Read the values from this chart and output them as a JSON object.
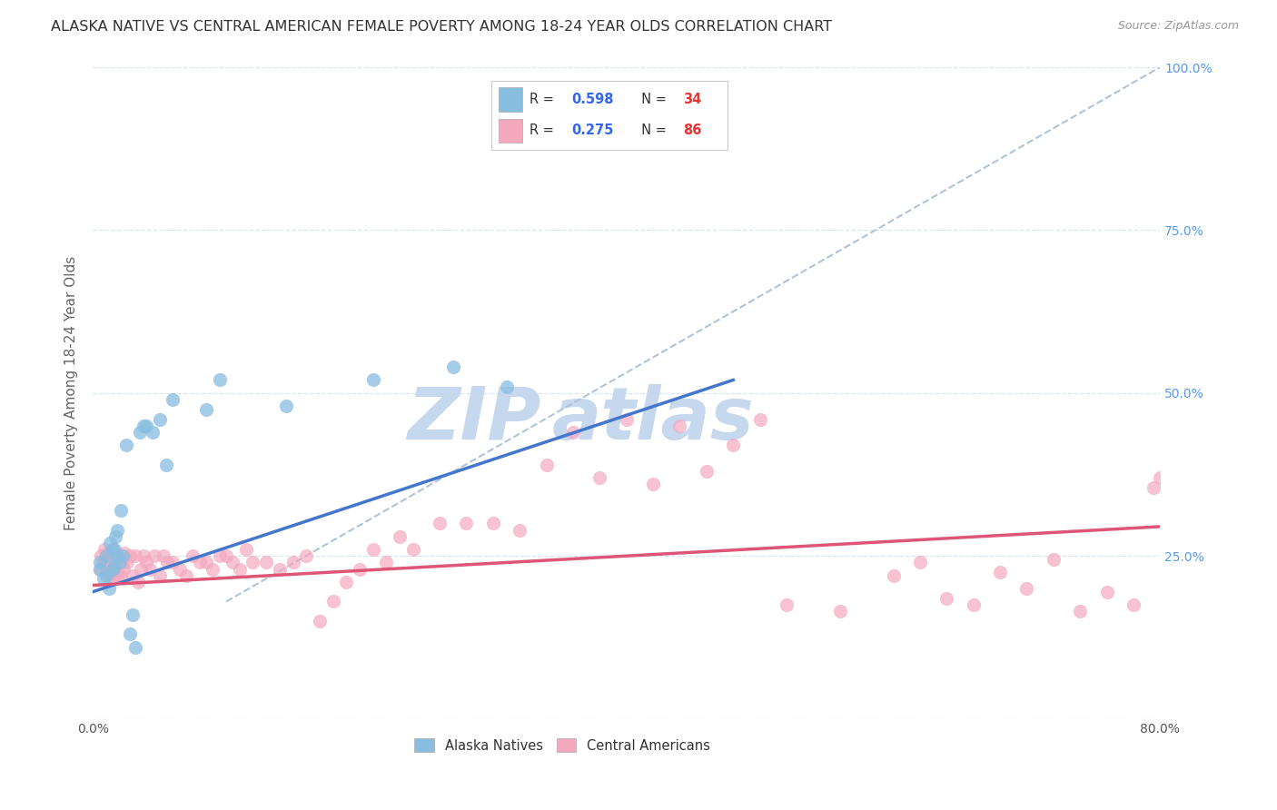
{
  "title": "ALASKA NATIVE VS CENTRAL AMERICAN FEMALE POVERTY AMONG 18-24 YEAR OLDS CORRELATION CHART",
  "source": "Source: ZipAtlas.com",
  "ylabel": "Female Poverty Among 18-24 Year Olds",
  "xlim": [
    0.0,
    0.8
  ],
  "ylim": [
    0.0,
    1.0
  ],
  "xticks": [
    0.0,
    0.1,
    0.2,
    0.3,
    0.4,
    0.5,
    0.6,
    0.7,
    0.8
  ],
  "yticks": [
    0.0,
    0.25,
    0.5,
    0.75,
    1.0
  ],
  "alaska_R": 0.598,
  "alaska_N": 34,
  "central_R": 0.275,
  "central_N": 86,
  "alaska_color": "#89bde0",
  "central_color": "#f4a8be",
  "alaska_line_color": "#4477cc",
  "central_line_color": "#dd5577",
  "dashed_line_color": "#b0c4d8",
  "background_color": "#ffffff",
  "grid_color": "#d8e4f0",
  "watermark_zip_color": "#c5d8ee",
  "watermark_atlas_color": "#c5d8ee",
  "alaska_trend_x0": 0.0,
  "alaska_trend_y0": 0.195,
  "alaska_trend_x1": 0.48,
  "alaska_trend_y1": 0.52,
  "central_trend_x0": 0.0,
  "central_trend_y0": 0.205,
  "central_trend_x1": 0.8,
  "central_trend_y1": 0.295,
  "alaska_x": [
    0.005,
    0.005,
    0.008,
    0.01,
    0.01,
    0.012,
    0.013,
    0.015,
    0.015,
    0.016,
    0.016,
    0.017,
    0.018,
    0.018,
    0.02,
    0.021,
    0.022,
    0.025,
    0.028,
    0.03,
    0.032,
    0.035,
    0.038,
    0.04,
    0.045,
    0.05,
    0.055,
    0.06,
    0.085,
    0.095,
    0.145,
    0.21,
    0.27,
    0.31
  ],
  "alaska_y": [
    0.23,
    0.24,
    0.215,
    0.22,
    0.25,
    0.2,
    0.27,
    0.23,
    0.26,
    0.235,
    0.26,
    0.28,
    0.25,
    0.29,
    0.24,
    0.32,
    0.25,
    0.42,
    0.13,
    0.16,
    0.11,
    0.44,
    0.45,
    0.45,
    0.44,
    0.46,
    0.39,
    0.49,
    0.475,
    0.52,
    0.48,
    0.52,
    0.54,
    0.51
  ],
  "central_x": [
    0.005,
    0.006,
    0.008,
    0.009,
    0.01,
    0.01,
    0.011,
    0.012,
    0.013,
    0.014,
    0.015,
    0.015,
    0.016,
    0.017,
    0.018,
    0.019,
    0.02,
    0.021,
    0.022,
    0.023,
    0.024,
    0.026,
    0.028,
    0.03,
    0.032,
    0.034,
    0.036,
    0.038,
    0.04,
    0.043,
    0.046,
    0.05,
    0.053,
    0.056,
    0.06,
    0.065,
    0.07,
    0.075,
    0.08,
    0.085,
    0.09,
    0.095,
    0.1,
    0.105,
    0.11,
    0.115,
    0.12,
    0.13,
    0.14,
    0.15,
    0.16,
    0.17,
    0.18,
    0.19,
    0.2,
    0.21,
    0.22,
    0.23,
    0.24,
    0.26,
    0.28,
    0.3,
    0.32,
    0.34,
    0.36,
    0.38,
    0.4,
    0.42,
    0.44,
    0.46,
    0.48,
    0.5,
    0.52,
    0.56,
    0.6,
    0.62,
    0.64,
    0.66,
    0.68,
    0.7,
    0.72,
    0.74,
    0.76,
    0.78,
    0.795,
    0.8
  ],
  "central_y": [
    0.23,
    0.25,
    0.24,
    0.26,
    0.225,
    0.245,
    0.255,
    0.22,
    0.25,
    0.24,
    0.23,
    0.25,
    0.22,
    0.24,
    0.25,
    0.22,
    0.24,
    0.22,
    0.24,
    0.23,
    0.255,
    0.24,
    0.25,
    0.22,
    0.25,
    0.21,
    0.23,
    0.25,
    0.24,
    0.23,
    0.25,
    0.22,
    0.25,
    0.24,
    0.24,
    0.23,
    0.22,
    0.25,
    0.24,
    0.24,
    0.23,
    0.25,
    0.25,
    0.24,
    0.23,
    0.26,
    0.24,
    0.24,
    0.23,
    0.24,
    0.25,
    0.15,
    0.18,
    0.21,
    0.23,
    0.26,
    0.24,
    0.28,
    0.26,
    0.3,
    0.3,
    0.3,
    0.29,
    0.39,
    0.44,
    0.37,
    0.46,
    0.36,
    0.45,
    0.38,
    0.42,
    0.46,
    0.175,
    0.165,
    0.22,
    0.24,
    0.185,
    0.175,
    0.225,
    0.2,
    0.245,
    0.165,
    0.195,
    0.175,
    0.355,
    0.37
  ]
}
